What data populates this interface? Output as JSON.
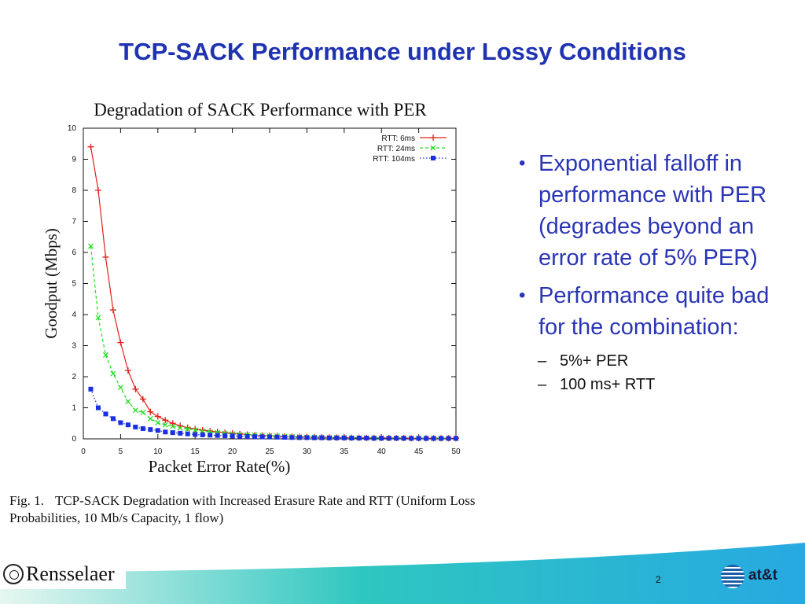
{
  "slide": {
    "title": "TCP-SACK Performance under Lossy Conditions",
    "page_number": "2"
  },
  "caption": {
    "fig_label": "Fig. 1.",
    "text": "TCP-SACK Degradation with Increased Erasure Rate and RTT (Uniform Loss Probabilities, 10 Mb/s Capacity, 1 flow)"
  },
  "bullets": [
    {
      "text": "Exponential falloff in performance with PER (degrades beyond an error rate of 5% PER)"
    },
    {
      "text": "Performance quite bad for the combination:"
    }
  ],
  "sub_bullets": [
    {
      "text": "5%+ PER"
    },
    {
      "text": "100 ms+ RTT"
    }
  ],
  "footer": {
    "left_logo_text": "Rensselaer",
    "right_logo_text": "at&t",
    "logos": [
      "rensselaer-seal-icon",
      "att-globe-icon"
    ]
  },
  "colors": {
    "title": "#1f33b0",
    "bullet_text": "#2a35b5",
    "series_6ms": "#e0201c",
    "series_24ms": "#22dd22",
    "series_104ms": "#1a2fe0",
    "footer_gradient": [
      "#e6f7f0",
      "#2ec6c0",
      "#27a9e1"
    ]
  },
  "chart_data": {
    "type": "line",
    "title": "Degradation of SACK Performance with PER",
    "xlabel": "Packet Error Rate(%)",
    "ylabel": "Goodput (Mbps)",
    "xlim": [
      0,
      50
    ],
    "ylim": [
      0,
      10
    ],
    "xticks": [
      0,
      5,
      10,
      15,
      20,
      25,
      30,
      35,
      40,
      45,
      50
    ],
    "yticks": [
      0,
      1,
      2,
      3,
      4,
      5,
      6,
      7,
      8,
      9,
      10
    ],
    "grid": false,
    "legend": "top-right",
    "series": [
      {
        "name": "RTT: 6ms",
        "color": "#e0201c",
        "dash": "solid",
        "marker": "plus",
        "x": [
          1,
          2,
          3,
          4,
          5,
          6,
          7,
          8,
          9,
          10,
          11,
          12,
          13,
          14,
          15,
          16,
          17,
          18,
          19,
          20,
          21,
          22,
          23,
          24,
          25,
          26,
          27,
          28,
          29,
          30,
          31,
          32,
          33,
          34,
          35,
          36,
          37,
          38,
          39,
          40,
          41,
          42,
          43,
          44,
          45,
          46,
          47,
          48,
          49,
          50
        ],
        "y": [
          9.4,
          8.0,
          5.85,
          4.15,
          3.1,
          2.2,
          1.6,
          1.28,
          0.87,
          0.72,
          0.6,
          0.5,
          0.42,
          0.36,
          0.32,
          0.28,
          0.25,
          0.22,
          0.2,
          0.18,
          0.16,
          0.14,
          0.12,
          0.11,
          0.1,
          0.09,
          0.08,
          0.07,
          0.065,
          0.06,
          0.055,
          0.05,
          0.045,
          0.04,
          0.04,
          0.035,
          0.035,
          0.03,
          0.03,
          0.03,
          0.025,
          0.025,
          0.025,
          0.02,
          0.02,
          0.02,
          0.02,
          0.02,
          0.02,
          0.02
        ]
      },
      {
        "name": "RTT: 24ms",
        "color": "#22dd22",
        "dash": "dashed",
        "marker": "x",
        "x": [
          1,
          2,
          3,
          4,
          5,
          6,
          7,
          8,
          9,
          10,
          11,
          12,
          13,
          14,
          15,
          16,
          17,
          18,
          19,
          20,
          21,
          22,
          23,
          24,
          25,
          26,
          27,
          28,
          29,
          30,
          31,
          32,
          33,
          34,
          35,
          36,
          37,
          38,
          39,
          40,
          41,
          42,
          43,
          44,
          45,
          46,
          47,
          48,
          49,
          50
        ],
        "y": [
          6.2,
          3.9,
          2.7,
          2.1,
          1.65,
          1.2,
          0.92,
          0.85,
          0.65,
          0.52,
          0.45,
          0.4,
          0.35,
          0.32,
          0.28,
          0.25,
          0.22,
          0.2,
          0.18,
          0.16,
          0.14,
          0.13,
          0.12,
          0.11,
          0.1,
          0.09,
          0.08,
          0.07,
          0.06,
          0.055,
          0.05,
          0.045,
          0.04,
          0.04,
          0.035,
          0.03,
          0.03,
          0.03,
          0.025,
          0.025,
          0.02,
          0.02,
          0.02,
          0.02,
          0.02,
          0.015,
          0.015,
          0.015,
          0.015,
          0.015
        ]
      },
      {
        "name": "RTT: 104ms",
        "color": "#1a2fe0",
        "dash": "dotted",
        "marker": "square",
        "x": [
          1,
          2,
          3,
          4,
          5,
          6,
          7,
          8,
          9,
          10,
          11,
          12,
          13,
          14,
          15,
          16,
          17,
          18,
          19,
          20,
          21,
          22,
          23,
          24,
          25,
          26,
          27,
          28,
          29,
          30,
          31,
          32,
          33,
          34,
          35,
          36,
          37,
          38,
          39,
          40,
          41,
          42,
          43,
          44,
          45,
          46,
          47,
          48,
          49,
          50
        ],
        "y": [
          1.6,
          1.0,
          0.8,
          0.65,
          0.52,
          0.45,
          0.38,
          0.33,
          0.3,
          0.27,
          0.22,
          0.2,
          0.18,
          0.16,
          0.14,
          0.13,
          0.12,
          0.11,
          0.1,
          0.09,
          0.08,
          0.075,
          0.07,
          0.065,
          0.06,
          0.055,
          0.05,
          0.045,
          0.04,
          0.04,
          0.035,
          0.035,
          0.03,
          0.03,
          0.03,
          0.025,
          0.025,
          0.025,
          0.02,
          0.02,
          0.02,
          0.02,
          0.02,
          0.015,
          0.015,
          0.015,
          0.015,
          0.015,
          0.015,
          0.015
        ]
      }
    ]
  }
}
